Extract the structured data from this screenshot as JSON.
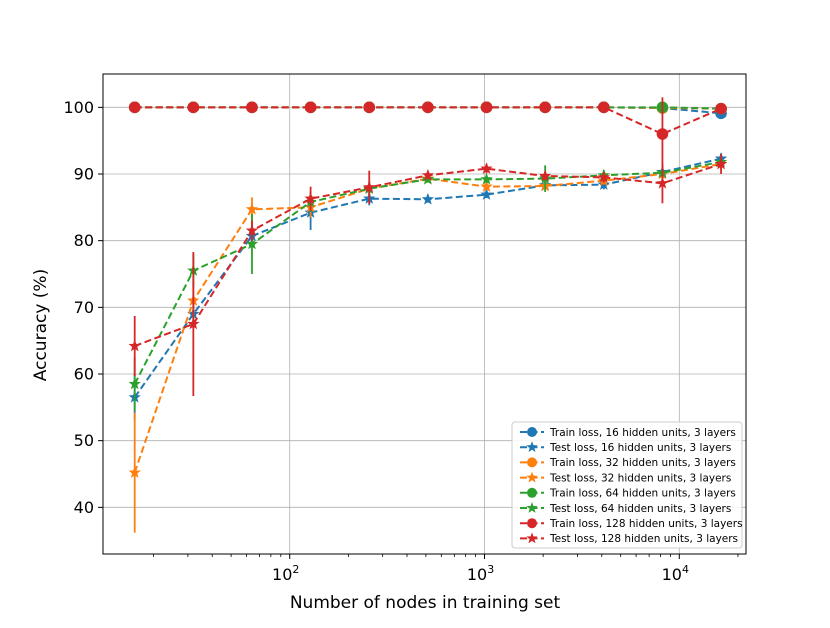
{
  "chart_data": {
    "type": "line",
    "title": "",
    "xlabel": "Number of nodes in training set",
    "ylabel": "Accuracy (%)",
    "xscale": "log",
    "xlim": [
      11,
      22000
    ],
    "ylim": [
      33,
      105
    ],
    "yticks": [
      40,
      50,
      60,
      70,
      80,
      90,
      100
    ],
    "xticks": [
      {
        "value": 100,
        "base": "10",
        "exp": "2"
      },
      {
        "value": 1000,
        "base": "10",
        "exp": "3"
      },
      {
        "value": 10000,
        "base": "10",
        "exp": "4"
      }
    ],
    "grid": true,
    "legend_position": "lower-right",
    "x": [
      16,
      32,
      64,
      128,
      256,
      512,
      1024,
      2048,
      4096,
      8192,
      16384
    ],
    "series": [
      {
        "name": "Train loss, 16 hidden units, 3 layers",
        "color": "#1f77b4",
        "marker": "circle",
        "y": [
          100,
          100,
          100,
          100,
          100,
          100,
          100,
          100,
          100,
          99.9,
          99.1
        ],
        "err": [
          0,
          0,
          0,
          0,
          0,
          0,
          0,
          0,
          0,
          0.2,
          0.6
        ]
      },
      {
        "name": "Test loss, 16 hidden units, 3 layers",
        "color": "#1f77b4",
        "marker": "star",
        "y": [
          56.5,
          69.0,
          80.7,
          84.2,
          86.3,
          86.2,
          86.9,
          88.3,
          88.4,
          90.3,
          92.3
        ],
        "err": [
          3.5,
          2.0,
          1.5,
          2.6,
          1.0,
          0.5,
          0.5,
          0.5,
          0.7,
          1.0,
          0.8
        ]
      },
      {
        "name": "Train loss, 32 hidden units, 3 layers",
        "color": "#ff7f0e",
        "marker": "circle",
        "y": [
          100,
          100,
          100,
          100,
          100,
          100,
          100,
          100,
          100,
          99.9,
          99.8
        ],
        "err": [
          0,
          0,
          0,
          0,
          0,
          0,
          0,
          0,
          0,
          0.2,
          0.3
        ]
      },
      {
        "name": "Test loss, 32 hidden units, 3 layers",
        "color": "#ff7f0e",
        "marker": "star",
        "y": [
          45.2,
          71.0,
          84.7,
          85.0,
          87.8,
          89.3,
          88.1,
          88.2,
          89.0,
          90.0,
          91.5
        ],
        "err": [
          9.0,
          3.0,
          1.8,
          1.5,
          1.0,
          0.5,
          0.5,
          0.4,
          0.6,
          0.8,
          0.9
        ]
      },
      {
        "name": "Train loss, 64 hidden units, 3 layers",
        "color": "#2ca02c",
        "marker": "circle",
        "y": [
          100,
          100,
          100,
          100,
          100,
          100,
          100,
          100,
          100,
          100,
          99.8
        ],
        "err": [
          0,
          0,
          0,
          0,
          0,
          0,
          0,
          0,
          0,
          0.1,
          0.2
        ]
      },
      {
        "name": "Test loss, 64 hidden units, 3 layers",
        "color": "#2ca02c",
        "marker": "star",
        "y": [
          58.5,
          75.5,
          79.5,
          85.8,
          87.8,
          89.2,
          89.2,
          89.3,
          89.8,
          90.2,
          91.8
        ],
        "err": [
          4.0,
          2.5,
          4.5,
          1.5,
          1.0,
          0.5,
          0.5,
          2.0,
          0.8,
          0.8,
          0.8
        ]
      },
      {
        "name": "Train loss, 128 hidden units, 3 layers",
        "color": "#d62728",
        "marker": "circle",
        "y": [
          100,
          100,
          100,
          100,
          100,
          100,
          100,
          100,
          100,
          96.0,
          99.8
        ],
        "err": [
          0,
          0,
          0,
          0,
          0,
          0,
          0,
          0,
          0,
          5.5,
          0.3
        ]
      },
      {
        "name": "Test loss, 128 hidden units, 3 layers",
        "color": "#d62728",
        "marker": "star",
        "y": [
          64.2,
          67.5,
          81.5,
          86.3,
          88.0,
          89.8,
          90.8,
          89.7,
          89.5,
          88.6,
          91.5
        ],
        "err": [
          4.5,
          10.8,
          1.5,
          1.8,
          2.5,
          0.6,
          0.7,
          0.6,
          0.8,
          3.0,
          1.5
        ]
      }
    ]
  }
}
